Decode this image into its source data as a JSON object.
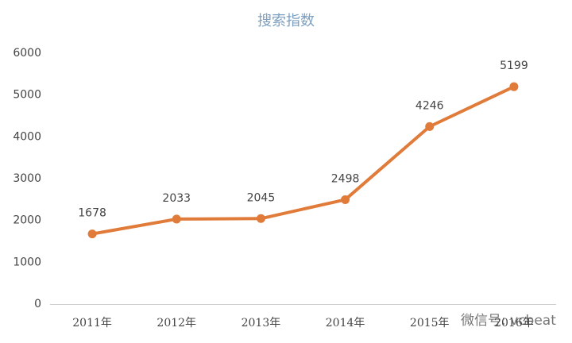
{
  "chart_data": {
    "type": "line",
    "title": "搜索指数",
    "categories": [
      "2011年",
      "2012年",
      "2013年",
      "2014年",
      "2015年",
      "2016年"
    ],
    "series": [
      {
        "name": "搜索指数",
        "color": "#e07b39",
        "values": [
          1678,
          2033,
          2045,
          2498,
          4246,
          5199
        ]
      }
    ],
    "ylim": [
      0,
      6000
    ],
    "yticks": [
      0,
      1000,
      2000,
      3000,
      4000,
      5000,
      6000
    ],
    "grid": false,
    "legend": false,
    "watermark": "微信号: vcbeat"
  }
}
